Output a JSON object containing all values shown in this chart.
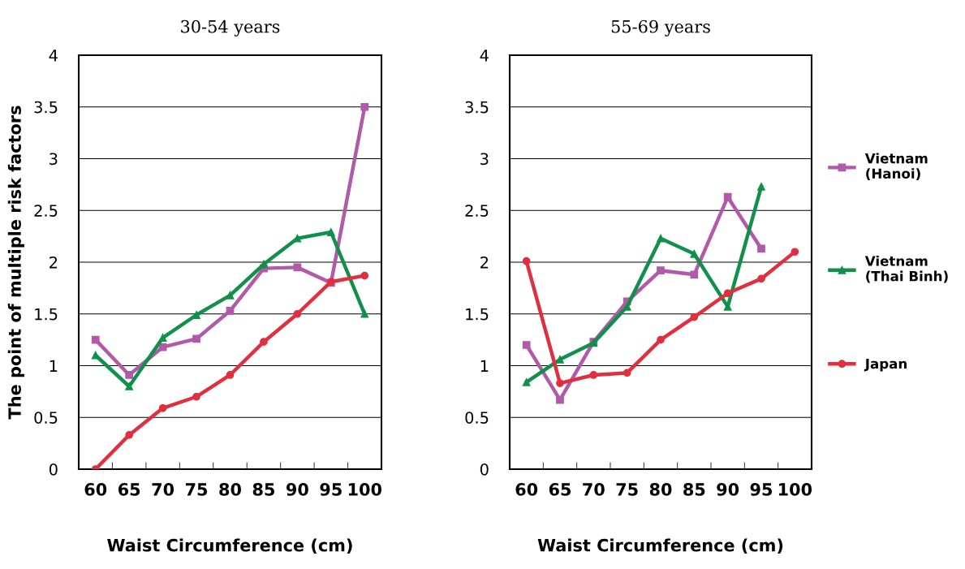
{
  "chart_data": [
    {
      "type": "line",
      "title": "30-54 years",
      "xlabel": "Waist Circumference (cm)",
      "ylabel": "The point of multiple risk factors",
      "categories": [
        "60",
        "65",
        "70",
        "75",
        "80",
        "85",
        "90",
        "95",
        "100"
      ],
      "ylim": [
        0,
        4
      ],
      "yticks": [
        0,
        0.5,
        1,
        1.5,
        2,
        2.5,
        3,
        3.5,
        4
      ],
      "grid": "y",
      "legend": false,
      "line_style": "solid",
      "series": [
        {
          "color": "#b05aa8",
          "marker": "square",
          "values": [
            1.25,
            0.91,
            1.18,
            1.26,
            1.53,
            1.94,
            1.95,
            1.8,
            3.5
          ]
        },
        {
          "color": "#10904a",
          "marker": "triangle",
          "values": [
            1.1,
            0.8,
            1.27,
            1.49,
            1.68,
            1.98,
            2.23,
            2.29,
            1.5
          ]
        },
        {
          "color": "#e03040",
          "marker": "circle",
          "values": [
            0.0,
            0.33,
            0.59,
            0.7,
            0.91,
            1.23,
            1.5,
            1.81,
            1.87
          ]
        }
      ]
    },
    {
      "type": "line",
      "title": "55-69 years",
      "xlabel": "Waist Circumference (cm)",
      "categories": [
        "60",
        "65",
        "70",
        "75",
        "80",
        "85",
        "90",
        "95",
        "100"
      ],
      "ylim": [
        0,
        4
      ],
      "yticks": [
        0,
        0.5,
        1,
        1.5,
        2,
        2.5,
        3,
        3.5,
        4
      ],
      "grid": "y",
      "legend": "right",
      "line_style": "solid",
      "series": [
        {
          "name": "Vietnam (Hanoi)",
          "color": "#b05aa8",
          "marker": "square",
          "values": [
            1.2,
            0.67,
            1.23,
            1.62,
            1.92,
            1.88,
            2.63,
            2.13,
            null
          ]
        },
        {
          "name": "Vietnam (Thai Binh)",
          "color": "#10904a",
          "marker": "triangle",
          "values": [
            0.84,
            1.06,
            1.22,
            1.57,
            2.23,
            2.08,
            1.57,
            2.73,
            null
          ]
        },
        {
          "name": "Japan",
          "color": "#e03040",
          "marker": "circle",
          "values": [
            2.01,
            0.83,
            0.91,
            0.93,
            1.25,
            1.47,
            1.7,
            1.84,
            2.1
          ]
        }
      ]
    }
  ]
}
